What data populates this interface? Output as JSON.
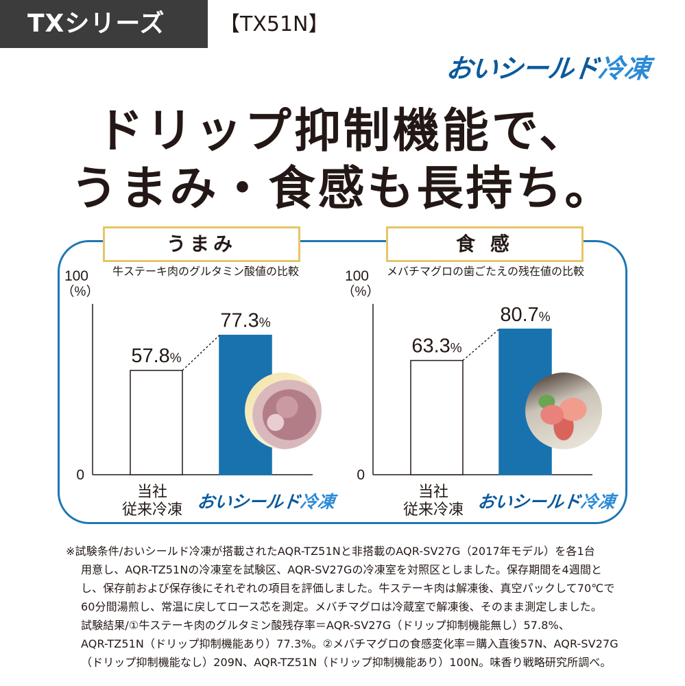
{
  "header": {
    "series": "TXシリーズ",
    "model": "【TX51N】",
    "brand_part1": "おいシールド",
    "brand_part2": "冷凍"
  },
  "headline": {
    "line1": "ドリップ抑制機能で、",
    "line2": "うまみ・食感も長持ち。"
  },
  "colors": {
    "frame": "#1c77b5",
    "bar_highlight": "#1872ad",
    "title_border": "#e7c565",
    "brand": "#0a5a9c"
  },
  "chart_data": [
    {
      "type": "bar",
      "title": "うまみ",
      "subtitle": "牛ステーキ肉のグルタミン酸値の比較",
      "ylim": [
        0,
        100
      ],
      "y_top_label": "100",
      "y_unit_label": "（%）",
      "y_bottom_label": "0",
      "categories": [
        "当社\n従来冷凍",
        "おいシールド冷凍"
      ],
      "category_line1": "当社",
      "category_line2": "従来冷凍",
      "values": [
        57.8,
        77.3
      ],
      "value_labels": [
        "57.8",
        "77.3"
      ],
      "unit": "%",
      "grid": false
    },
    {
      "type": "bar",
      "title": "食 感",
      "subtitle": "メバチマグロの歯ごたえの残在値の比較",
      "ylim": [
        0,
        100
      ],
      "y_top_label": "100",
      "y_unit_label": "（%）",
      "y_bottom_label": "0",
      "categories": [
        "当社\n従来冷凍",
        "おいシールド冷凍"
      ],
      "category_line1": "当社",
      "category_line2": "従来冷凍",
      "values": [
        63.3,
        80.7
      ],
      "value_labels": [
        "63.3",
        "80.7"
      ],
      "unit": "%",
      "grid": false
    }
  ],
  "footnote": {
    "lines": [
      "※試験条件/おいシールド冷凍が搭載されたAQR-TZ51Nと非搭載のAQR-SV27G（2017年モデル）を各1台",
      "用意し、AQR-TZ51Nの冷凍室を試験区、AQR-SV27Gの冷凍室を対照区としました。保存期間を4週間と",
      "し、保存前および保存後にそれぞれの項目を評価しました。牛ステーキ肉は解凍後、真空パックして70℃で",
      "60分間湯煎し、常温に戻してロース芯を測定。メバチマグロは冷蔵室で解凍後、そのまま測定しました。",
      "試験結果/①牛ステーキ肉のグルタミン酸残存率＝AQR-SV27G（ドリップ抑制機能無し）57.8%、",
      "AQR-TZ51N（ドリップ抑制機能あり）77.3%。②メバチマグロの食感変化率＝購入直後57N、AQR-SV27G",
      "（ドリップ抑制機能なし）209N、AQR-TZ51N（ドリップ抑制機能あり）100N。味香り戦略研究所調べ。"
    ]
  }
}
